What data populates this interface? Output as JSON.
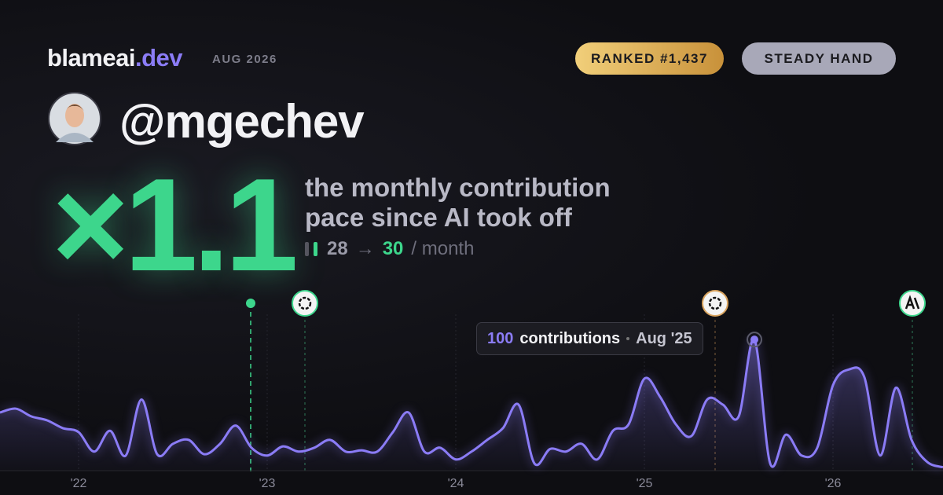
{
  "header": {
    "brand": "blameai",
    "brand_tld": ".dev",
    "period": "AUG 2026",
    "rank_badge": "RANKED #1,437",
    "style_badge": "STEADY HAND"
  },
  "profile": {
    "username": "@mgechev"
  },
  "headline": {
    "multiplier": "×1.1",
    "description_line_1": "the monthly contribution",
    "description_line_2": "pace since AI took off",
    "before": 28,
    "arrow": "→",
    "after": 30,
    "unit": "/ month"
  },
  "chart_data": {
    "type": "line",
    "color": "#8b7cf6",
    "categories": [
      null,
      null,
      null,
      null,
      null,
      "'22",
      null,
      null,
      null,
      null,
      null,
      null,
      null,
      null,
      null,
      null,
      null,
      "'23",
      null,
      null,
      null,
      null,
      null,
      null,
      null,
      null,
      null,
      null,
      null,
      "'24",
      null,
      null,
      null,
      null,
      null,
      null,
      null,
      null,
      null,
      null,
      null,
      "'25",
      null,
      null,
      null,
      null,
      null,
      null,
      null,
      null,
      null,
      null,
      null,
      "'26",
      null,
      null,
      null,
      null,
      null,
      null,
      null
    ],
    "values": [
      44,
      47,
      41,
      38,
      32,
      29,
      14,
      30,
      11,
      54,
      12,
      20,
      23,
      12,
      20,
      34,
      17,
      11,
      18,
      14,
      17,
      23,
      14,
      15,
      14,
      29,
      44,
      14,
      17,
      8,
      14,
      23,
      32,
      50,
      5,
      16,
      14,
      20,
      8,
      30,
      35,
      70,
      56,
      35,
      26,
      54,
      50,
      41,
      100,
      5,
      27,
      11,
      17,
      65,
      77,
      71,
      11,
      63,
      23,
      6,
      2
    ],
    "ylim": [
      0,
      120
    ],
    "tooltip": {
      "index": 48,
      "unit": "contributions",
      "date": "Aug '25"
    }
  }
}
